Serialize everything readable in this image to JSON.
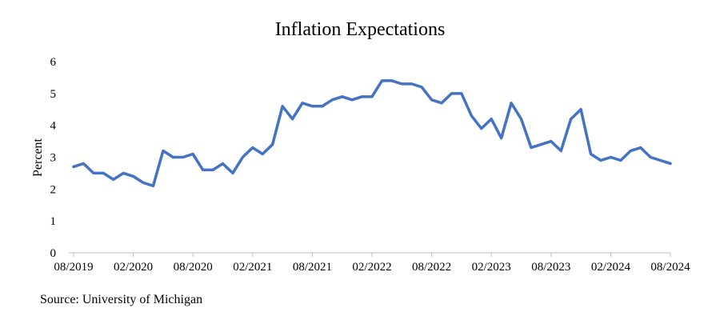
{
  "chart_data": {
    "type": "line",
    "title": "Inflation Expectations",
    "ylabel": "Percent",
    "xlabel": "",
    "ylim": [
      0,
      6
    ],
    "yticks": [
      0,
      1,
      2,
      3,
      4,
      5,
      6
    ],
    "grid": false,
    "legend": "none",
    "line_color": "#4472C4",
    "xtick_labels": [
      "08/2019",
      "02/2020",
      "08/2020",
      "02/2021",
      "08/2021",
      "02/2022",
      "08/2022",
      "02/2023",
      "08/2023",
      "02/2024",
      "08/2024"
    ],
    "x": [
      "08/2019",
      "09/2019",
      "10/2019",
      "11/2019",
      "12/2019",
      "01/2020",
      "02/2020",
      "03/2020",
      "04/2020",
      "05/2020",
      "06/2020",
      "07/2020",
      "08/2020",
      "09/2020",
      "10/2020",
      "11/2020",
      "12/2020",
      "01/2021",
      "02/2021",
      "03/2021",
      "04/2021",
      "05/2021",
      "06/2021",
      "07/2021",
      "08/2021",
      "09/2021",
      "10/2021",
      "11/2021",
      "12/2021",
      "01/2022",
      "02/2022",
      "03/2022",
      "04/2022",
      "05/2022",
      "06/2022",
      "07/2022",
      "08/2022",
      "09/2022",
      "10/2022",
      "11/2022",
      "12/2022",
      "01/2023",
      "02/2023",
      "03/2023",
      "04/2023",
      "05/2023",
      "06/2023",
      "07/2023",
      "08/2023",
      "09/2023",
      "10/2023",
      "11/2023",
      "12/2023",
      "01/2024",
      "02/2024",
      "03/2024",
      "04/2024",
      "05/2024",
      "06/2024",
      "07/2024",
      "08/2024"
    ],
    "series": [
      {
        "values": [
          2.7,
          2.8,
          2.5,
          2.5,
          2.3,
          2.5,
          2.4,
          2.2,
          2.1,
          3.2,
          3.0,
          3.0,
          3.1,
          2.6,
          2.6,
          2.8,
          2.5,
          3.0,
          3.3,
          3.1,
          3.4,
          4.6,
          4.2,
          4.7,
          4.6,
          4.6,
          4.8,
          4.9,
          4.8,
          4.9,
          4.9,
          5.4,
          5.4,
          5.3,
          5.3,
          5.2,
          4.8,
          4.7,
          5.0,
          5.0,
          4.3,
          3.9,
          4.2,
          3.6,
          4.7,
          4.2,
          3.3,
          3.4,
          3.5,
          3.2,
          4.2,
          4.5,
          3.1,
          2.9,
          3.0,
          2.9,
          3.2,
          3.3,
          3.0,
          2.9,
          2.8
        ]
      }
    ]
  },
  "source": "Source: University of Michigan"
}
